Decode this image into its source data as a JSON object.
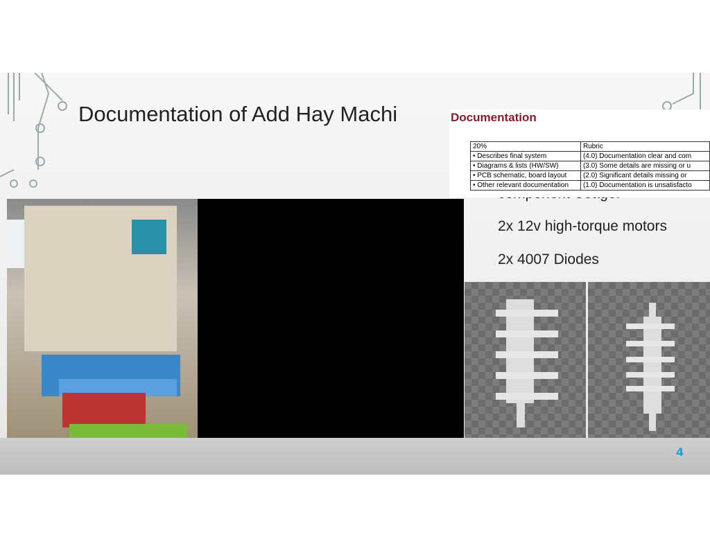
{
  "slide": {
    "title": "Documentation of Add Hay Machi",
    "bullets": [
      "component Usage:",
      "2x 12v high-torque motors",
      "2x 4007 Diodes"
    ],
    "page_number": "4",
    "rubric": {
      "heading": "Documentation",
      "header": [
        "20%",
        "Rubric"
      ],
      "rows": [
        [
          "• Describes final system",
          "(4.0) Documentation clear and com"
        ],
        [
          "• Diagrams & lists (HW/SW)",
          "(3.0) Some details are missing or u"
        ],
        [
          "• PCB schematic, board layout",
          "(2.0)  Significant details missing or"
        ],
        [
          "• Other relevant documentation",
          "(1.0) Documentation is unsatisfacto"
        ]
      ]
    }
  }
}
